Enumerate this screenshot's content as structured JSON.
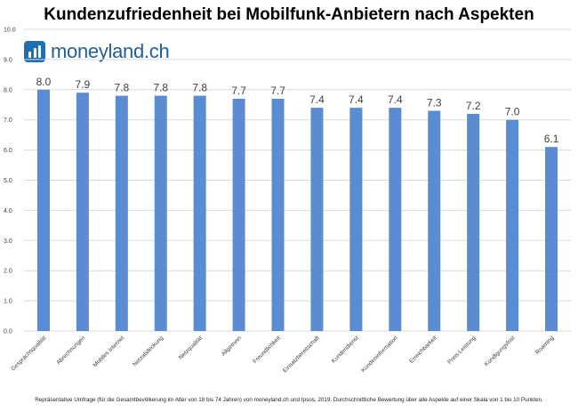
{
  "title": "Kundenzufriedenheit bei Mobilfunk-Anbietern nach Aspekten",
  "logo": {
    "text": "moneyland.ch",
    "icon": "bar-chart-logo-icon"
  },
  "footnote": "Repräsentative Umfrage (für die Gesamtbevölkerung im Alter von 18 bis 74 Jahren) von moneyland.ch und Ipsos, 2019. Durchschnittliche Bewertung über alle Aspekte auf einer Skala von 1 bis 10 Punkten.",
  "colors": {
    "bar": "#5b8bd0",
    "grid": "#d9d9d9",
    "text": "#404040",
    "logo": "#1f6fb5"
  },
  "chart_data": {
    "type": "bar",
    "title": "Kundenzufriedenheit bei Mobilfunk-Anbietern nach Aspekten",
    "categories": [
      "Gesprächsqualität",
      "Abrechnungen",
      "Mobiles Internet",
      "Netzabdeckung",
      "Netzqualität",
      "Allgemein",
      "Freundlichkeit",
      "Einsatzbereitschaft",
      "Kundendienst",
      "Kundeninformation",
      "Erreichbarkeit",
      "Preis-Leistung",
      "Kündigungsfrist",
      "Roaming"
    ],
    "values": [
      8.0,
      7.9,
      7.8,
      7.8,
      7.8,
      7.7,
      7.7,
      7.4,
      7.4,
      7.4,
      7.3,
      7.2,
      7.0,
      6.1
    ],
    "value_labels": [
      "8.0",
      "7.9",
      "7.8",
      "7.8",
      "7.8",
      "7.7",
      "7.7",
      "7.4",
      "7.4",
      "7.4",
      "7.3",
      "7.2",
      "7.0",
      "6.1"
    ],
    "yticks": [
      "0.0",
      "1.0",
      "2.0",
      "3.0",
      "4.0",
      "5.0",
      "6.0",
      "7.0",
      "8.0",
      "9.0",
      "10.0"
    ],
    "ylim": [
      0,
      10
    ],
    "xlabel": "",
    "ylabel": "",
    "grid": true,
    "legend": false
  }
}
